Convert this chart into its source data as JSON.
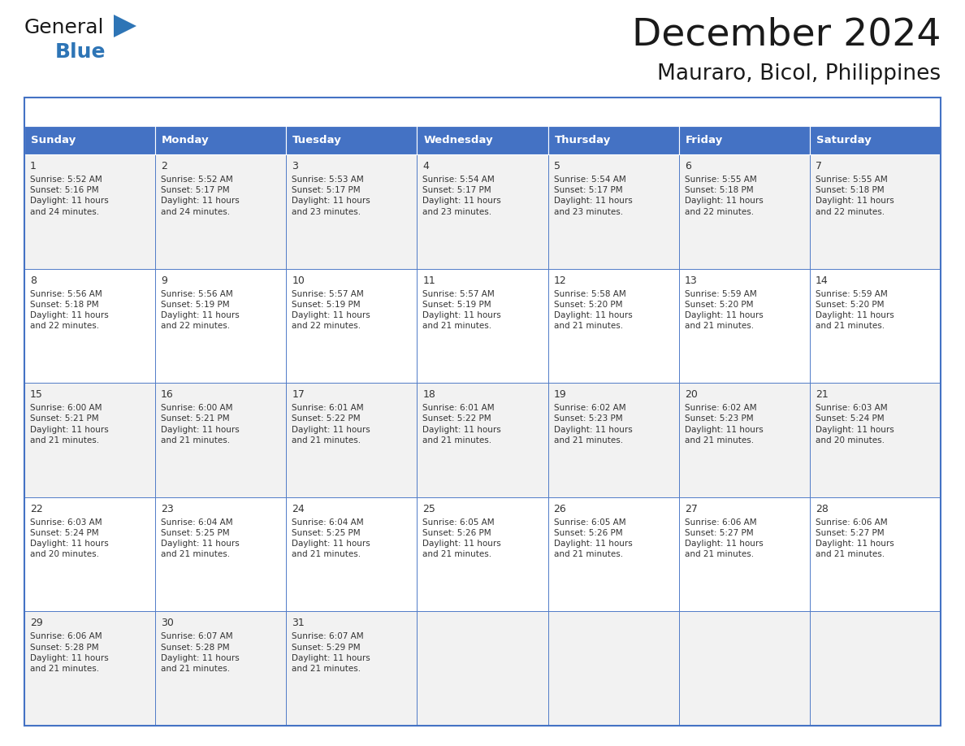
{
  "title": "December 2024",
  "subtitle": "Mauraro, Bicol, Philippines",
  "days_of_week": [
    "Sunday",
    "Monday",
    "Tuesday",
    "Wednesday",
    "Thursday",
    "Friday",
    "Saturday"
  ],
  "header_bg": "#4472C4",
  "header_text": "#FFFFFF",
  "cell_bg_light": "#f2f2f2",
  "cell_bg_white": "#FFFFFF",
  "cell_border": "#4472C4",
  "day_num_color": "#333333",
  "info_text_color": "#333333",
  "title_color": "#1a1a1a",
  "subtitle_color": "#1a1a1a",
  "calendar_data": [
    [
      {
        "day": 1,
        "sunrise": "5:52 AM",
        "sunset": "5:16 PM",
        "daylight": "11 hours and 24 minutes."
      },
      {
        "day": 2,
        "sunrise": "5:52 AM",
        "sunset": "5:17 PM",
        "daylight": "11 hours and 24 minutes."
      },
      {
        "day": 3,
        "sunrise": "5:53 AM",
        "sunset": "5:17 PM",
        "daylight": "11 hours and 23 minutes."
      },
      {
        "day": 4,
        "sunrise": "5:54 AM",
        "sunset": "5:17 PM",
        "daylight": "11 hours and 23 minutes."
      },
      {
        "day": 5,
        "sunrise": "5:54 AM",
        "sunset": "5:17 PM",
        "daylight": "11 hours and 23 minutes."
      },
      {
        "day": 6,
        "sunrise": "5:55 AM",
        "sunset": "5:18 PM",
        "daylight": "11 hours and 22 minutes."
      },
      {
        "day": 7,
        "sunrise": "5:55 AM",
        "sunset": "5:18 PM",
        "daylight": "11 hours and 22 minutes."
      }
    ],
    [
      {
        "day": 8,
        "sunrise": "5:56 AM",
        "sunset": "5:18 PM",
        "daylight": "11 hours and 22 minutes."
      },
      {
        "day": 9,
        "sunrise": "5:56 AM",
        "sunset": "5:19 PM",
        "daylight": "11 hours and 22 minutes."
      },
      {
        "day": 10,
        "sunrise": "5:57 AM",
        "sunset": "5:19 PM",
        "daylight": "11 hours and 22 minutes."
      },
      {
        "day": 11,
        "sunrise": "5:57 AM",
        "sunset": "5:19 PM",
        "daylight": "11 hours and 21 minutes."
      },
      {
        "day": 12,
        "sunrise": "5:58 AM",
        "sunset": "5:20 PM",
        "daylight": "11 hours and 21 minutes."
      },
      {
        "day": 13,
        "sunrise": "5:59 AM",
        "sunset": "5:20 PM",
        "daylight": "11 hours and 21 minutes."
      },
      {
        "day": 14,
        "sunrise": "5:59 AM",
        "sunset": "5:20 PM",
        "daylight": "11 hours and 21 minutes."
      }
    ],
    [
      {
        "day": 15,
        "sunrise": "6:00 AM",
        "sunset": "5:21 PM",
        "daylight": "11 hours and 21 minutes."
      },
      {
        "day": 16,
        "sunrise": "6:00 AM",
        "sunset": "5:21 PM",
        "daylight": "11 hours and 21 minutes."
      },
      {
        "day": 17,
        "sunrise": "6:01 AM",
        "sunset": "5:22 PM",
        "daylight": "11 hours and 21 minutes."
      },
      {
        "day": 18,
        "sunrise": "6:01 AM",
        "sunset": "5:22 PM",
        "daylight": "11 hours and 21 minutes."
      },
      {
        "day": 19,
        "sunrise": "6:02 AM",
        "sunset": "5:23 PM",
        "daylight": "11 hours and 21 minutes."
      },
      {
        "day": 20,
        "sunrise": "6:02 AM",
        "sunset": "5:23 PM",
        "daylight": "11 hours and 21 minutes."
      },
      {
        "day": 21,
        "sunrise": "6:03 AM",
        "sunset": "5:24 PM",
        "daylight": "11 hours and 20 minutes."
      }
    ],
    [
      {
        "day": 22,
        "sunrise": "6:03 AM",
        "sunset": "5:24 PM",
        "daylight": "11 hours and 20 minutes."
      },
      {
        "day": 23,
        "sunrise": "6:04 AM",
        "sunset": "5:25 PM",
        "daylight": "11 hours and 21 minutes."
      },
      {
        "day": 24,
        "sunrise": "6:04 AM",
        "sunset": "5:25 PM",
        "daylight": "11 hours and 21 minutes."
      },
      {
        "day": 25,
        "sunrise": "6:05 AM",
        "sunset": "5:26 PM",
        "daylight": "11 hours and 21 minutes."
      },
      {
        "day": 26,
        "sunrise": "6:05 AM",
        "sunset": "5:26 PM",
        "daylight": "11 hours and 21 minutes."
      },
      {
        "day": 27,
        "sunrise": "6:06 AM",
        "sunset": "5:27 PM",
        "daylight": "11 hours and 21 minutes."
      },
      {
        "day": 28,
        "sunrise": "6:06 AM",
        "sunset": "5:27 PM",
        "daylight": "11 hours and 21 minutes."
      }
    ],
    [
      {
        "day": 29,
        "sunrise": "6:06 AM",
        "sunset": "5:28 PM",
        "daylight": "11 hours and 21 minutes."
      },
      {
        "day": 30,
        "sunrise": "6:07 AM",
        "sunset": "5:28 PM",
        "daylight": "11 hours and 21 minutes."
      },
      {
        "day": 31,
        "sunrise": "6:07 AM",
        "sunset": "5:29 PM",
        "daylight": "11 hours and 21 minutes."
      },
      null,
      null,
      null,
      null
    ]
  ],
  "num_rows": 5,
  "num_cols": 7
}
